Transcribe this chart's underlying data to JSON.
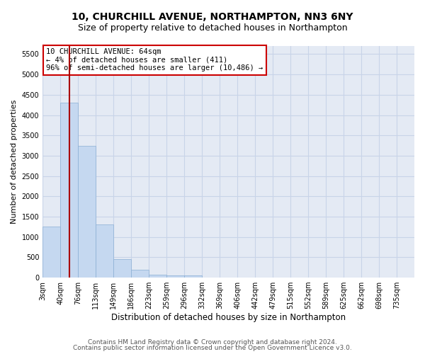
{
  "title": "10, CHURCHILL AVENUE, NORTHAMPTON, NN3 6NY",
  "subtitle": "Size of property relative to detached houses in Northampton",
  "xlabel": "Distribution of detached houses by size in Northampton",
  "ylabel": "Number of detached properties",
  "bar_color": "#c5d8f0",
  "bar_edge_color": "#8aafd4",
  "grid_color": "#c8d4e8",
  "background_color": "#e4eaf4",
  "vline_color": "#aa0000",
  "vline_bin_index": 1,
  "annotation_text": "10 CHURCHILL AVENUE: 64sqm\n← 4% of detached houses are smaller (411)\n96% of semi-detached houses are larger (10,486) →",
  "annotation_box_color": "#ffffff",
  "annotation_box_edge_color": "#cc0000",
  "categories": [
    "3sqm",
    "40sqm",
    "76sqm",
    "113sqm",
    "149sqm",
    "186sqm",
    "223sqm",
    "259sqm",
    "296sqm",
    "332sqm",
    "369sqm",
    "406sqm",
    "442sqm",
    "479sqm",
    "515sqm",
    "552sqm",
    "589sqm",
    "625sqm",
    "662sqm",
    "698sqm",
    "735sqm"
  ],
  "bar_heights": [
    1250,
    4300,
    3250,
    1300,
    450,
    200,
    75,
    60,
    60,
    0,
    0,
    0,
    0,
    0,
    0,
    0,
    0,
    0,
    0,
    0,
    0
  ],
  "ylim": [
    0,
    5700
  ],
  "yticks": [
    0,
    500,
    1000,
    1500,
    2000,
    2500,
    3000,
    3500,
    4000,
    4500,
    5000,
    5500
  ],
  "footer1": "Contains HM Land Registry data © Crown copyright and database right 2024.",
  "footer2": "Contains public sector information licensed under the Open Government Licence v3.0.",
  "title_fontsize": 10,
  "subtitle_fontsize": 9,
  "xlabel_fontsize": 8.5,
  "ylabel_fontsize": 8,
  "tick_fontsize": 7,
  "footer_fontsize": 6.5,
  "annotation_fontsize": 7.5
}
